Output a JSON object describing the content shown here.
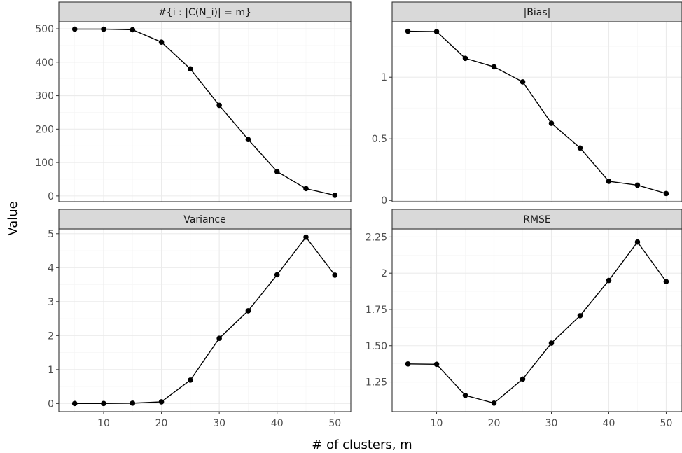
{
  "chart_data": [
    {
      "type": "line",
      "title": "#{i : |C(N_i)| = m}",
      "x": [
        5,
        10,
        15,
        20,
        25,
        30,
        35,
        40,
        45,
        50
      ],
      "series": [
        {
          "values": [
            499,
            499,
            497,
            460,
            380,
            271,
            169,
            73,
            22,
            2
          ]
        }
      ],
      "ylim": [
        -17,
        521
      ],
      "xlim": [
        2.25,
        52.75
      ],
      "yticks": [
        0,
        100,
        200,
        300,
        400,
        500
      ],
      "ytick_labels": [
        "0",
        "100",
        "200",
        "300",
        "400",
        "500"
      ],
      "xticks": [
        10,
        20,
        30,
        40,
        50
      ],
      "xtick_labels": [
        "10",
        "20",
        "30",
        "40",
        "50"
      ]
    },
    {
      "type": "line",
      "title": "|Bias|",
      "x": [
        5,
        10,
        15,
        20,
        25,
        30,
        35,
        40,
        45,
        50
      ],
      "series": [
        {
          "values": [
            1.373,
            1.37,
            1.153,
            1.084,
            0.962,
            0.626,
            0.426,
            0.155,
            0.124,
            0.056
          ]
        }
      ],
      "ylim": [
        -0.01,
        1.45
      ],
      "xlim": [
        2.25,
        52.75
      ],
      "yticks": [
        0,
        0.5,
        1
      ],
      "ytick_labels": [
        "0",
        "0.5",
        "1"
      ],
      "xticks": [
        10,
        20,
        30,
        40,
        50
      ],
      "xtick_labels": [
        "10",
        "20",
        "30",
        "40",
        "50"
      ]
    },
    {
      "type": "line",
      "title": "Variance",
      "x": [
        5,
        10,
        15,
        20,
        25,
        30,
        35,
        40,
        45,
        50
      ],
      "series": [
        {
          "values": [
            0,
            0,
            0.01,
            0.05,
            0.69,
            1.92,
            2.73,
            3.79,
            4.9,
            3.78
          ]
        }
      ],
      "ylim": [
        -0.24,
        5.14
      ],
      "xlim": [
        2.25,
        52.75
      ],
      "yticks": [
        0,
        1,
        2,
        3,
        4,
        5
      ],
      "ytick_labels": [
        "0",
        "1",
        "2",
        "3",
        "4",
        "5"
      ],
      "xticks": [
        10,
        20,
        30,
        40,
        50
      ],
      "xtick_labels": [
        "10",
        "20",
        "30",
        "40",
        "50"
      ]
    },
    {
      "type": "line",
      "title": "RMSE",
      "x": [
        5,
        10,
        15,
        20,
        25,
        30,
        35,
        40,
        45,
        50
      ],
      "series": [
        {
          "values": [
            1.374,
            1.372,
            1.157,
            1.104,
            1.27,
            1.518,
            1.707,
            1.95,
            2.215,
            1.942
          ]
        }
      ],
      "ylim": [
        1.045,
        2.305
      ],
      "xlim": [
        2.25,
        52.75
      ],
      "yticks": [
        1.25,
        1.5,
        1.75,
        2,
        2.25
      ],
      "ytick_labels": [
        "1.25",
        "1.50",
        "1.75",
        "2",
        "2.25"
      ],
      "xticks": [
        10,
        20,
        30,
        40,
        50
      ],
      "xtick_labels": [
        "10",
        "20",
        "30",
        "40",
        "50"
      ]
    }
  ],
  "xlabel": "# of clusters, m",
  "ylabel": "Value",
  "colors": {
    "line": "#000000",
    "point": "#000000",
    "strip_fill": "#d9d9d9",
    "strip_border": "#333333",
    "grid_major": "#ebebeb",
    "grid_minor": "#f5f5f5",
    "panel_border": "#333333"
  }
}
